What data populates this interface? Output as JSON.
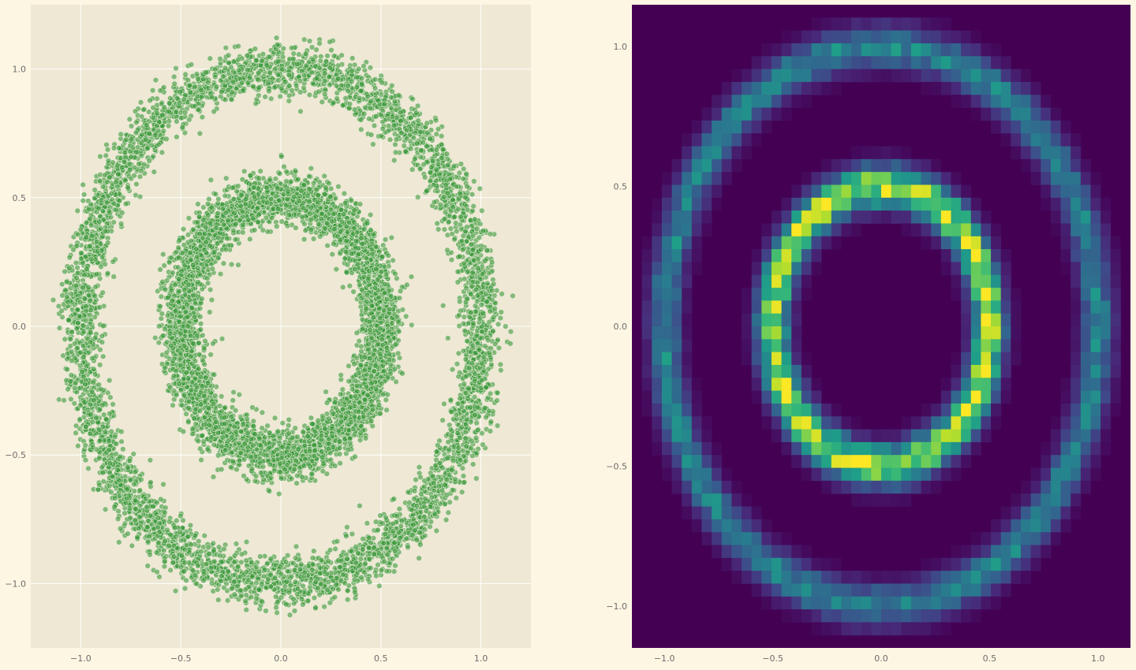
{
  "figure": {
    "background": "#fdf6e3",
    "axes_facecolor": "#eee8d5",
    "grid_color": "#ffffff",
    "tick_label_color": "#6c6c6c",
    "marker_color": "#3a9a3a",
    "marker_edge_color": "#f4f0e4"
  },
  "chart_data": [
    {
      "type": "scatter",
      "title": "",
      "xlabel": "",
      "ylabel": "",
      "xlim": [
        -1.25,
        1.25
      ],
      "ylim": [
        -1.25,
        1.25
      ],
      "grid": true,
      "xticks": [
        -1.0,
        -0.5,
        0.0,
        0.5,
        1.0
      ],
      "yticks": [
        -1.0,
        -0.5,
        0.0,
        0.5,
        1.0
      ],
      "xtick_labels": [
        "−1.0",
        "−0.5",
        "0.0",
        "0.5",
        "1.0"
      ],
      "ytick_labels": [
        "−1.0",
        "−0.5",
        "0.0",
        "0.5",
        "1.0"
      ],
      "series": [
        {
          "shape": "ring",
          "center": [
            0,
            0
          ],
          "radius": 1.0,
          "noise_sd": 0.05,
          "n_points": 5000,
          "marker_alpha": 0.6
        },
        {
          "shape": "ring",
          "center": [
            0,
            0
          ],
          "radius": 0.5,
          "noise_sd": 0.05,
          "n_points": 5000,
          "marker_alpha": 0.6
        }
      ]
    },
    {
      "type": "heatmap",
      "title": "",
      "xlabel": "",
      "ylabel": "",
      "xlim": [
        -1.15,
        1.15
      ],
      "ylim": [
        -1.15,
        1.15
      ],
      "grid": false,
      "bins": 50,
      "colormap": "viridis",
      "xticks": [
        -1.0,
        -0.5,
        0.0,
        0.5,
        1.0
      ],
      "yticks": [
        -1.0,
        -0.5,
        0.0,
        0.5,
        1.0
      ],
      "xtick_labels": [
        "−1.0",
        "−0.5",
        "0.0",
        "0.5",
        "1.0"
      ],
      "ytick_labels": [
        "−1.0",
        "−0.5",
        "0.0",
        "0.5",
        "1.0"
      ],
      "density_rings": [
        {
          "radius": 1.0,
          "noise_sd": 0.05,
          "relative_peak": 0.45
        },
        {
          "radius": 0.5,
          "noise_sd": 0.05,
          "relative_peak": 0.9
        }
      ]
    }
  ]
}
